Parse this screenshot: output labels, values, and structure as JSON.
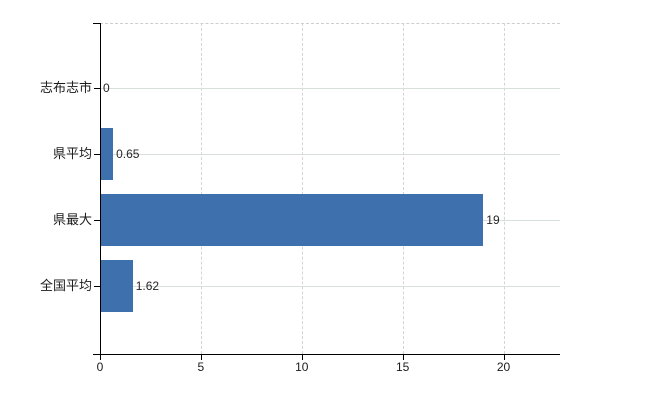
{
  "chart_data": {
    "type": "bar",
    "orientation": "horizontal",
    "title": "",
    "categories": [
      "志布志市",
      "県平均",
      "県最大",
      "全国平均"
    ],
    "values": [
      0,
      0.65,
      19,
      1.62
    ],
    "data_labels": [
      "0",
      "0.65",
      "19",
      "1.62"
    ],
    "x_ticks": [
      0,
      5,
      10,
      15,
      20
    ],
    "x_tick_labels": [
      "0",
      "5",
      "10",
      "15",
      "20"
    ],
    "xlim": [
      0,
      22.8
    ],
    "grid": true,
    "legend": false,
    "colors": {
      "bar": "#3e70ad",
      "grid_horizontal": "#d8ded8",
      "grid_vertical": "#d6d2dc",
      "plot_top_border": "#cfccd2",
      "axis": "#000000",
      "text": "#1b1b1b",
      "background": "#ffffff"
    }
  }
}
